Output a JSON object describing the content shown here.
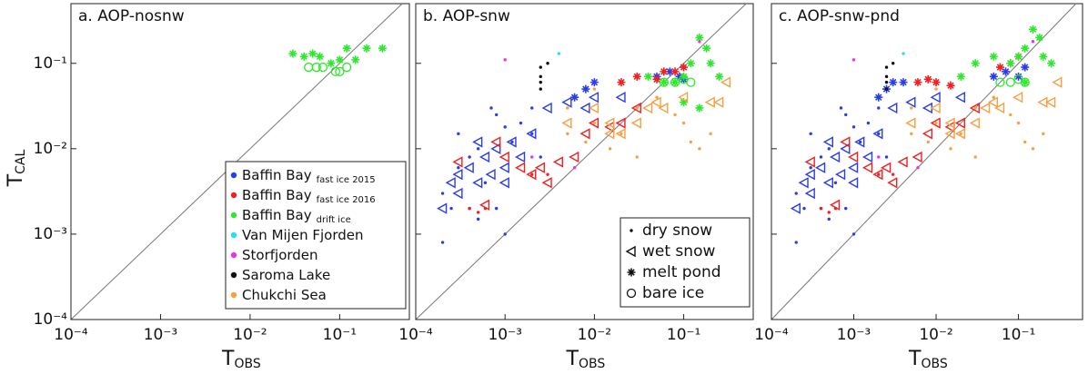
{
  "chart_data": [
    {
      "type": "scatter",
      "title": "a. AOP-nosnw",
      "log": true,
      "x_label": {
        "main": "T",
        "sub": "OBS"
      },
      "y_label": {
        "main": "T",
        "sub": "CAL"
      },
      "xlim": [
        0.0001,
        0.6
      ],
      "ylim": [
        0.0001,
        0.5
      ],
      "xticks": [
        {
          "value": 0.0001,
          "label": "10⁻⁴"
        },
        {
          "value": 0.001,
          "label": "10⁻³"
        },
        {
          "value": 0.01,
          "label": "10⁻²"
        },
        {
          "value": 0.1,
          "label": "10⁻¹"
        }
      ],
      "yticks": [
        {
          "value": 0.0001,
          "label": "10⁻⁴"
        },
        {
          "value": 0.001,
          "label": "10⁻³"
        },
        {
          "value": 0.01,
          "label": "10⁻²"
        },
        {
          "value": 0.1,
          "label": "10⁻¹"
        }
      ],
      "legend": [
        {
          "name": "Baffin Bay",
          "subscript": "fast ice 2015",
          "color": "#2a3cf0"
        },
        {
          "name": "Baffin Bay",
          "subscript": "fast ice 2016",
          "color": "#f02020"
        },
        {
          "name": "Baffin Bay",
          "subscript": "drift ice",
          "color": "#2ee82e"
        },
        {
          "name": "Van Mijen Fjorden",
          "color": "#22e0ee"
        },
        {
          "name": "Storfjorden",
          "color": "#e835e8"
        },
        {
          "name": "Saroma Lake",
          "color": "#111111"
        },
        {
          "name": "Chukchi Sea",
          "color": "#f5a042"
        }
      ],
      "series": [
        {
          "color": "#2ee82e",
          "marker": "asterisk",
          "x": [
            0.03,
            0.04,
            0.05,
            0.06,
            0.08,
            0.1,
            0.12,
            0.15,
            0.2,
            0.3
          ],
          "y": [
            0.13,
            0.12,
            0.13,
            0.12,
            0.1,
            0.11,
            0.15,
            0.11,
            0.15,
            0.15
          ]
        },
        {
          "color": "#2ee82e",
          "marker": "circle",
          "x": [
            0.045,
            0.055,
            0.065,
            0.09,
            0.1,
            0.12
          ],
          "y": [
            0.09,
            0.09,
            0.09,
            0.08,
            0.08,
            0.09
          ]
        }
      ]
    },
    {
      "type": "scatter",
      "title": "b. AOP-snw",
      "log": true,
      "x_label": {
        "main": "T",
        "sub": "OBS"
      },
      "xlim": [
        0.0001,
        0.6
      ],
      "ylim": [
        0.0001,
        0.5
      ],
      "xticks": [
        {
          "value": 0.0001,
          "label": "10⁻⁴"
        },
        {
          "value": 0.001,
          "label": "10⁻³"
        },
        {
          "value": 0.01,
          "label": "10⁻²"
        },
        {
          "value": 0.1,
          "label": "10⁻¹"
        }
      ],
      "yticks": [
        {
          "value": 0.0001,
          "label": "10⁻⁴"
        },
        {
          "value": 0.001,
          "label": "10⁻³"
        },
        {
          "value": 0.01,
          "label": "10⁻²"
        },
        {
          "value": 0.1,
          "label": "10⁻¹"
        }
      ],
      "marker_legend": [
        {
          "name": "dry snow",
          "marker": "dot"
        },
        {
          "name": "wet snow",
          "marker": "triangle"
        },
        {
          "name": "melt pond",
          "marker": "asterisk"
        },
        {
          "name": "bare ice",
          "marker": "circle"
        }
      ],
      "series": [
        {
          "color": "#2a3cf0",
          "marker": "dot",
          "x": [
            0.0002,
            0.00025,
            0.0003,
            0.0004,
            0.0005,
            0.0006,
            0.0008,
            0.001,
            0.0012,
            0.0015,
            0.002,
            0.0003,
            0.0005,
            0.0007,
            0.001,
            0.002,
            0.0002,
            0.0004,
            0.0008,
            0.0025
          ],
          "y": [
            0.0008,
            0.002,
            0.006,
            0.002,
            0.0015,
            0.004,
            0.002,
            0.001,
            0.012,
            0.02,
            0.03,
            0.015,
            0.01,
            0.03,
            0.018,
            0.015,
            0.003,
            0.008,
            0.025,
            0.008
          ]
        },
        {
          "color": "#2a3cf0",
          "marker": "triangle",
          "x": [
            0.0002,
            0.00025,
            0.0003,
            0.0004,
            0.0005,
            0.0006,
            0.0007,
            0.0008,
            0.001,
            0.0012,
            0.0015,
            0.002,
            0.003,
            0.005,
            0.008,
            0.01,
            0.02,
            0.0003,
            0.0005,
            0.001
          ],
          "y": [
            0.002,
            0.004,
            0.003,
            0.006,
            0.004,
            0.008,
            0.005,
            0.01,
            0.006,
            0.012,
            0.008,
            0.015,
            0.03,
            0.035,
            0.03,
            0.04,
            0.04,
            0.005,
            0.012,
            0.004
          ]
        },
        {
          "color": "#2a3cf0",
          "marker": "asterisk",
          "x": [
            0.006,
            0.008,
            0.01,
            0.05,
            0.07,
            0.09,
            0.1
          ],
          "y": [
            0.04,
            0.05,
            0.06,
            0.07,
            0.08,
            0.07,
            0.065
          ]
        },
        {
          "color": "#f02020",
          "marker": "dot",
          "x": [
            0.0004,
            0.0005,
            0.0006,
            0.002,
            0.003
          ],
          "y": [
            0.002,
            0.0018,
            0.002,
            0.005,
            0.005
          ]
        },
        {
          "color": "#f02020",
          "marker": "triangle",
          "x": [
            0.0003,
            0.0006,
            0.001,
            0.0015,
            0.002,
            0.003,
            0.004,
            0.006,
            0.008,
            0.01,
            0.015,
            0.02,
            0.03,
            0.0025,
            0.0008
          ],
          "y": [
            0.007,
            0.0022,
            0.008,
            0.006,
            0.005,
            0.004,
            0.007,
            0.008,
            0.015,
            0.02,
            0.018,
            0.02,
            0.03,
            0.006,
            0.012
          ]
        },
        {
          "color": "#f02020",
          "marker": "asterisk",
          "x": [
            0.02,
            0.03,
            0.05,
            0.06,
            0.08,
            0.1
          ],
          "y": [
            0.06,
            0.07,
            0.065,
            0.08,
            0.08,
            0.09
          ]
        },
        {
          "color": "#2ee82e",
          "marker": "asterisk",
          "x": [
            0.04,
            0.06,
            0.08,
            0.1,
            0.12,
            0.15,
            0.18,
            0.2,
            0.25,
            0.15,
            0.1
          ],
          "y": [
            0.07,
            0.06,
            0.06,
            0.07,
            0.1,
            0.2,
            0.15,
            0.1,
            0.07,
            0.03,
            0.035
          ]
        },
        {
          "color": "#2ee82e",
          "marker": "circle",
          "x": [
            0.06,
            0.08,
            0.1,
            0.12
          ],
          "y": [
            0.06,
            0.06,
            0.065,
            0.06
          ]
        },
        {
          "color": "#22e0ee",
          "marker": "dot",
          "x": [
            0.004
          ],
          "y": [
            0.13
          ]
        },
        {
          "color": "#e835e8",
          "marker": "dot",
          "x": [
            0.001,
            0.002,
            0.006,
            0.15
          ],
          "y": [
            0.11,
            0.008,
            0.006,
            0.18
          ]
        },
        {
          "color": "#111111",
          "marker": "dot",
          "x": [
            0.0025,
            0.0025,
            0.0025,
            0.0025,
            0.003
          ],
          "y": [
            0.05,
            0.06,
            0.07,
            0.09,
            0.1
          ]
        },
        {
          "color": "#f5a042",
          "marker": "dot",
          "x": [
            0.005,
            0.008,
            0.01,
            0.015,
            0.02,
            0.03,
            0.05,
            0.1,
            0.15,
            0.2,
            0.03,
            0.01,
            0.005,
            0.08,
            0.12
          ],
          "y": [
            0.015,
            0.012,
            0.02,
            0.01,
            0.015,
            0.03,
            0.04,
            0.02,
            0.01,
            0.015,
            0.008,
            0.05,
            0.03,
            0.025,
            0.012
          ]
        },
        {
          "color": "#f5a042",
          "marker": "triangle",
          "x": [
            0.005,
            0.01,
            0.015,
            0.02,
            0.03,
            0.04,
            0.05,
            0.06,
            0.1,
            0.2,
            0.3,
            0.25,
            0.015
          ],
          "y": [
            0.02,
            0.03,
            0.02,
            0.015,
            0.02,
            0.03,
            0.035,
            0.03,
            0.04,
            0.035,
            0.06,
            0.035,
            0.015
          ]
        }
      ]
    },
    {
      "type": "scatter",
      "title": "c. AOP-snw-pnd",
      "log": true,
      "x_label": {
        "main": "T",
        "sub": "OBS"
      },
      "xlim": [
        0.0001,
        0.6
      ],
      "ylim": [
        0.0001,
        0.5
      ],
      "xticks": [
        {
          "value": 0.0001,
          "label": "10⁻⁴"
        },
        {
          "value": 0.001,
          "label": "10⁻³"
        },
        {
          "value": 0.01,
          "label": "10⁻²"
        },
        {
          "value": 0.1,
          "label": "10⁻¹"
        }
      ],
      "yticks": [
        {
          "value": 0.0001,
          "label": "10⁻⁴"
        },
        {
          "value": 0.001,
          "label": "10⁻³"
        },
        {
          "value": 0.01,
          "label": "10⁻²"
        },
        {
          "value": 0.1,
          "label": "10⁻¹"
        }
      ],
      "series": [
        {
          "color": "#2a3cf0",
          "marker": "dot",
          "x": [
            0.0002,
            0.00025,
            0.0003,
            0.0004,
            0.0005,
            0.0006,
            0.0008,
            0.001,
            0.0012,
            0.0015,
            0.002,
            0.0003,
            0.0005,
            0.0007,
            0.001,
            0.002,
            0.0002,
            0.0004,
            0.0008,
            0.0025
          ],
          "y": [
            0.0008,
            0.002,
            0.006,
            0.002,
            0.0015,
            0.004,
            0.002,
            0.001,
            0.012,
            0.02,
            0.03,
            0.015,
            0.01,
            0.03,
            0.018,
            0.015,
            0.003,
            0.008,
            0.025,
            0.008
          ]
        },
        {
          "color": "#2a3cf0",
          "marker": "triangle",
          "x": [
            0.0002,
            0.00025,
            0.0003,
            0.0004,
            0.0005,
            0.0006,
            0.0007,
            0.0008,
            0.001,
            0.0012,
            0.0015,
            0.002,
            0.003,
            0.005,
            0.008,
            0.01,
            0.02,
            0.0003,
            0.0005,
            0.001
          ],
          "y": [
            0.002,
            0.004,
            0.003,
            0.006,
            0.004,
            0.008,
            0.005,
            0.01,
            0.006,
            0.012,
            0.008,
            0.015,
            0.03,
            0.035,
            0.03,
            0.04,
            0.04,
            0.005,
            0.012,
            0.004
          ]
        },
        {
          "color": "#2a3cf0",
          "marker": "asterisk",
          "x": [
            0.002,
            0.0025,
            0.003,
            0.004,
            0.05,
            0.07,
            0.1,
            0.12
          ],
          "y": [
            0.04,
            0.05,
            0.06,
            0.06,
            0.07,
            0.08,
            0.07,
            0.09
          ]
        },
        {
          "color": "#f02020",
          "marker": "dot",
          "x": [
            0.0004,
            0.0005,
            0.0006,
            0.002,
            0.003
          ],
          "y": [
            0.002,
            0.0018,
            0.002,
            0.005,
            0.005
          ]
        },
        {
          "color": "#f02020",
          "marker": "triangle",
          "x": [
            0.0003,
            0.0006,
            0.001,
            0.0015,
            0.002,
            0.003,
            0.004,
            0.006,
            0.008,
            0.01,
            0.015,
            0.02,
            0.03,
            0.0025,
            0.0008
          ],
          "y": [
            0.007,
            0.0022,
            0.008,
            0.006,
            0.005,
            0.004,
            0.007,
            0.008,
            0.015,
            0.02,
            0.018,
            0.02,
            0.03,
            0.006,
            0.012
          ]
        },
        {
          "color": "#f02020",
          "marker": "asterisk",
          "x": [
            0.006,
            0.008,
            0.01,
            0.015,
            0.06,
            0.08,
            0.1
          ],
          "y": [
            0.06,
            0.065,
            0.06,
            0.055,
            0.09,
            0.1,
            0.12
          ]
        },
        {
          "color": "#2ee82e",
          "marker": "asterisk",
          "x": [
            0.02,
            0.03,
            0.05,
            0.08,
            0.1,
            0.12,
            0.15,
            0.18,
            0.2,
            0.25,
            0.12
          ],
          "y": [
            0.07,
            0.1,
            0.12,
            0.1,
            0.12,
            0.15,
            0.25,
            0.2,
            0.12,
            0.1,
            0.06
          ]
        },
        {
          "color": "#2ee82e",
          "marker": "circle",
          "x": [
            0.06,
            0.08,
            0.1,
            0.12
          ],
          "y": [
            0.06,
            0.06,
            0.065,
            0.06
          ]
        },
        {
          "color": "#22e0ee",
          "marker": "dot",
          "x": [
            0.004
          ],
          "y": [
            0.13
          ]
        },
        {
          "color": "#e835e8",
          "marker": "dot",
          "x": [
            0.001,
            0.002,
            0.006,
            0.15
          ],
          "y": [
            0.11,
            0.008,
            0.006,
            0.18
          ]
        },
        {
          "color": "#111111",
          "marker": "dot",
          "x": [
            0.0025,
            0.0025,
            0.0025,
            0.0025,
            0.003
          ],
          "y": [
            0.05,
            0.06,
            0.07,
            0.09,
            0.1
          ]
        },
        {
          "color": "#f5a042",
          "marker": "dot",
          "x": [
            0.005,
            0.008,
            0.01,
            0.015,
            0.02,
            0.03,
            0.05,
            0.1,
            0.15,
            0.2,
            0.03,
            0.01,
            0.005,
            0.08,
            0.12
          ],
          "y": [
            0.015,
            0.012,
            0.02,
            0.01,
            0.015,
            0.03,
            0.04,
            0.02,
            0.01,
            0.015,
            0.008,
            0.05,
            0.03,
            0.025,
            0.012
          ]
        },
        {
          "color": "#f5a042",
          "marker": "triangle",
          "x": [
            0.005,
            0.01,
            0.015,
            0.02,
            0.03,
            0.04,
            0.05,
            0.06,
            0.1,
            0.2,
            0.3,
            0.25,
            0.015
          ],
          "y": [
            0.02,
            0.03,
            0.02,
            0.015,
            0.02,
            0.03,
            0.035,
            0.03,
            0.04,
            0.035,
            0.06,
            0.035,
            0.015
          ]
        }
      ]
    }
  ]
}
